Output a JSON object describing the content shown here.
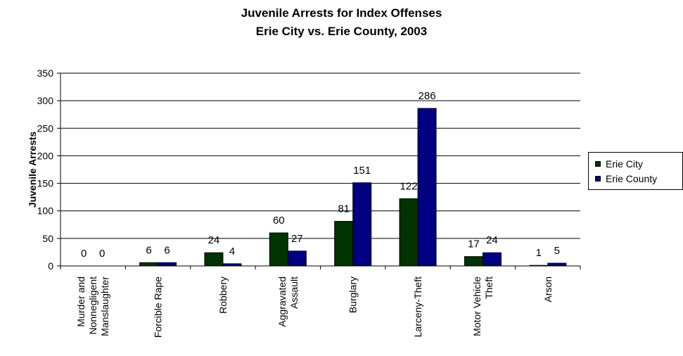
{
  "chart_data": {
    "type": "bar",
    "title": "Juvenile Arrests for Index Offenses",
    "subtitle": "Erie City vs. Erie County, 2003",
    "ylabel": "Juvenile Arrests",
    "xlabel": "",
    "ylim": [
      0,
      350
    ],
    "yticks": [
      0,
      50,
      100,
      150,
      200,
      250,
      300,
      350
    ],
    "grid": true,
    "legend": "right",
    "categories": [
      [
        "Murder and",
        "Nonnegligent",
        "Manslaughter"
      ],
      [
        "Forcible Rape"
      ],
      [
        "Robbery"
      ],
      [
        "Aggravated",
        "Assault"
      ],
      [
        "Burglary"
      ],
      [
        "Larceny-Theft"
      ],
      [
        "Motor Vehicle",
        "Theft"
      ],
      [
        "Arson"
      ]
    ],
    "series": [
      {
        "name": "Erie City",
        "color": "#003300",
        "values": [
          0,
          6,
          24,
          60,
          81,
          122,
          17,
          1
        ]
      },
      {
        "name": "Erie County",
        "color": "#000080",
        "values": [
          0,
          6,
          4,
          27,
          151,
          286,
          24,
          5
        ]
      }
    ]
  }
}
